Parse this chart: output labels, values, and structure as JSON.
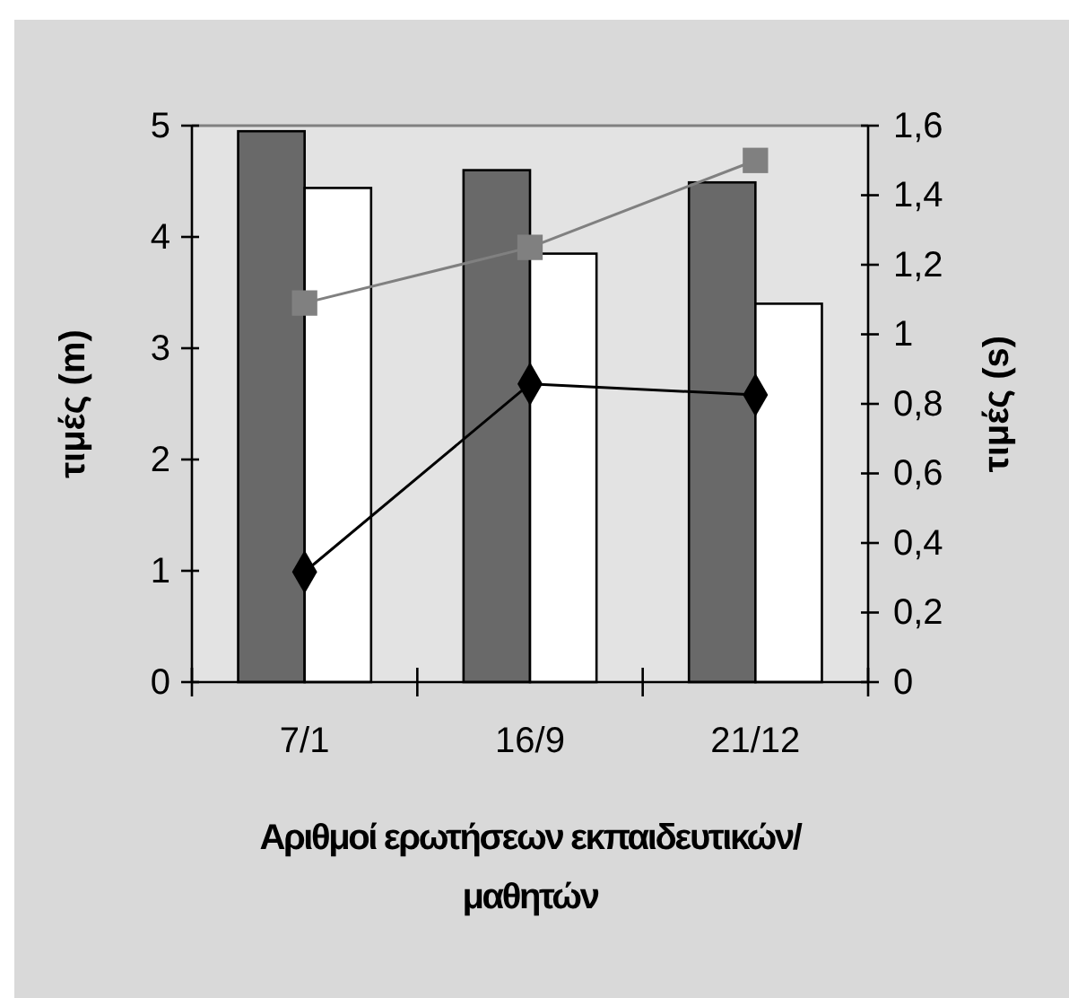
{
  "chart_data": {
    "type": "bar",
    "xlabel": "Αριθμοί ερωτήσεων εκπαιδευτικών/ μαθητών",
    "ylabel": "τιμές (m)",
    "y2label": "τιμές (s)",
    "categories": [
      "7/1",
      "16/9",
      "21/12"
    ],
    "series": [
      {
        "color": "#696969",
        "values": [
          4.95,
          4.6,
          4.49
        ]
      },
      {
        "color": "#ffffff",
        "values": [
          4.44,
          3.85,
          3.4
        ]
      },
      {
        "type": "line",
        "axis": "y2",
        "color": "#808080",
        "marker": "square",
        "values": [
          1.09,
          1.25,
          1.5
        ]
      },
      {
        "type": "line",
        "color": "#000000",
        "marker": "diamond",
        "values": [
          0.99,
          2.68,
          2.58
        ]
      }
    ],
    "ylim": [
      0,
      5
    ],
    "yticks": [
      0,
      1,
      2,
      3,
      4,
      5
    ],
    "y2lim": [
      0,
      1.6
    ],
    "y2ticks": [
      0,
      {
        "value": 0.2,
        "label": "0,2"
      },
      {
        "value": 0.4,
        "label": "0,4"
      },
      {
        "value": 0.6,
        "label": "0,6"
      },
      {
        "value": 0.8,
        "label": "0,8"
      },
      1,
      {
        "value": 1.2,
        "label": "1,2"
      },
      {
        "value": 1.4,
        "label": "1,4"
      },
      {
        "value": 1.6,
        "label": "1,6"
      }
    ],
    "grid": false
  }
}
